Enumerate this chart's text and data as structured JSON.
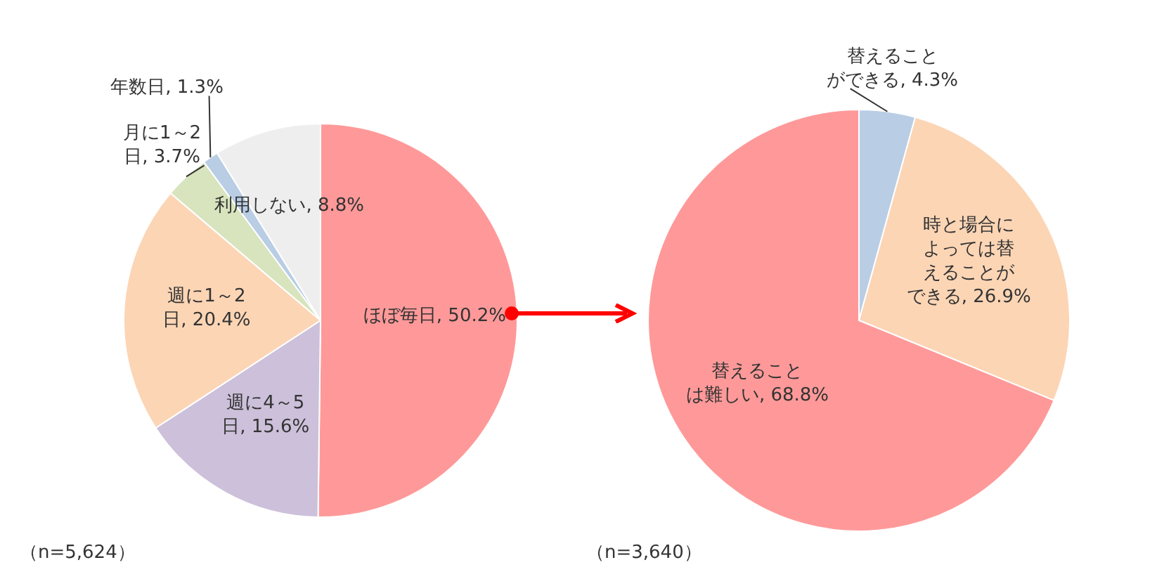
{
  "chart_data": [
    {
      "type": "pie",
      "categories": [
        "ほぼ毎日",
        "週に4～5日",
        "週に1～2日",
        "月に1～2日",
        "年数日",
        "利用しない"
      ],
      "values": [
        50.2,
        15.6,
        20.4,
        3.7,
        1.3,
        8.8
      ],
      "value_labels": [
        "50.2%",
        "15.6%",
        "20.4%",
        "3.7%",
        "1.3%",
        "8.8%"
      ],
      "colors": [
        "#ff9999",
        "#ccc0da",
        "#fcd5b5",
        "#d7e4bd",
        "#b9cde5",
        "#eeeeee"
      ],
      "legend": false,
      "annotations": [
        "（n=5,624）"
      ]
    },
    {
      "type": "pie",
      "categories": [
        "替えることができる",
        "時と場合によっては替えることができる",
        "替えることは難しい"
      ],
      "values": [
        4.3,
        26.9,
        68.8
      ],
      "value_labels": [
        "4.3%",
        "26.9%",
        "68.8%"
      ],
      "colors": [
        "#b9cde5",
        "#fcd5b5",
        "#ff9999"
      ],
      "legend": false,
      "annotations": [
        "（n=3,640）"
      ]
    }
  ]
}
